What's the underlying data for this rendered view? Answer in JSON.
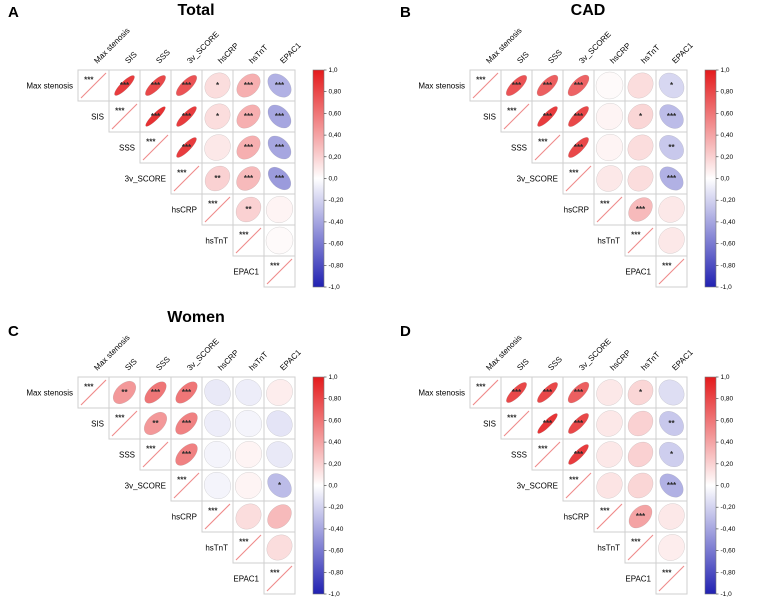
{
  "figure_name": "Correlation matrices",
  "palette": {
    "positive": "#e41a1c",
    "negative": "#2121b2",
    "zero": "#ffffff",
    "diagonal_line": "#ef8a8a",
    "grid": "#cfcfcf",
    "stars": "#2b2b2b",
    "colorbar_border": "#777777"
  },
  "colorbar": {
    "domain": [
      1,
      -1
    ],
    "ticks": [
      "1,0",
      "0,80",
      "0,60",
      "0,40",
      "0,20",
      "0,0",
      "-0,20",
      "-0,40",
      "-0,60",
      "-0,80",
      "-1,0"
    ]
  },
  "chart_data": [
    {
      "type": "heatmap",
      "subtype": "correlation-ellipse-matrix",
      "letter": "A",
      "title": "Total",
      "legend_position": "right",
      "variables": [
        "Max stenosis",
        "SIS",
        "SSS",
        "3v_SCORE",
        "hsCRP",
        "hsTnT",
        "EPAC1"
      ],
      "r": [
        [
          1,
          0.85,
          0.8,
          0.75,
          0.15,
          0.35,
          -0.35
        ],
        [
          null,
          1,
          0.9,
          0.85,
          0.15,
          0.35,
          -0.4
        ],
        [
          null,
          null,
          1,
          0.85,
          0.1,
          0.35,
          -0.4
        ],
        [
          null,
          null,
          null,
          1,
          0.2,
          0.3,
          -0.45
        ],
        [
          null,
          null,
          null,
          null,
          1,
          0.2,
          0.05
        ],
        [
          null,
          null,
          null,
          null,
          null,
          1,
          0.02
        ],
        [
          null,
          null,
          null,
          null,
          null,
          null,
          1
        ]
      ],
      "sig": [
        [
          "***",
          "***",
          "***",
          "***",
          "*",
          "***",
          "***"
        ],
        [
          null,
          "***",
          "***",
          "***",
          "*",
          "***",
          "***"
        ],
        [
          null,
          null,
          "***",
          "***",
          "",
          "***",
          "***"
        ],
        [
          null,
          null,
          null,
          "***",
          "**",
          "***",
          "***"
        ],
        [
          null,
          null,
          null,
          null,
          "***",
          "**",
          ""
        ],
        [
          null,
          null,
          null,
          null,
          null,
          "***",
          ""
        ],
        [
          null,
          null,
          null,
          null,
          null,
          null,
          "***"
        ]
      ]
    },
    {
      "type": "heatmap",
      "subtype": "correlation-ellipse-matrix",
      "letter": "B",
      "title": "CAD",
      "legend_position": "right",
      "variables": [
        "Max stenosis",
        "SIS",
        "SSS",
        "3v_SCORE",
        "hsCRP",
        "hsTnT",
        "EPAC1"
      ],
      "r": [
        [
          1,
          0.75,
          0.7,
          0.68,
          0.02,
          0.15,
          -0.18
        ],
        [
          null,
          1,
          0.85,
          0.8,
          0.05,
          0.18,
          -0.3
        ],
        [
          null,
          null,
          1,
          0.8,
          0.05,
          0.15,
          -0.25
        ],
        [
          null,
          null,
          null,
          1,
          0.1,
          0.15,
          -0.35
        ],
        [
          null,
          null,
          null,
          null,
          1,
          0.3,
          0.1
        ],
        [
          null,
          null,
          null,
          null,
          null,
          1,
          0.1
        ],
        [
          null,
          null,
          null,
          null,
          null,
          null,
          1
        ]
      ],
      "sig": [
        [
          "***",
          "***",
          "***",
          "***",
          "",
          "",
          "*"
        ],
        [
          null,
          "***",
          "***",
          "***",
          "",
          "*",
          "***"
        ],
        [
          null,
          null,
          "***",
          "***",
          "",
          "",
          "**"
        ],
        [
          null,
          null,
          null,
          "***",
          "",
          "",
          "***"
        ],
        [
          null,
          null,
          null,
          null,
          "***",
          "***",
          ""
        ],
        [
          null,
          null,
          null,
          null,
          null,
          "***",
          ""
        ],
        [
          null,
          null,
          null,
          null,
          null,
          null,
          "***"
        ]
      ]
    },
    {
      "type": "heatmap",
      "subtype": "correlation-ellipse-matrix",
      "letter": "C",
      "title": "Women",
      "legend_position": "right",
      "variables": [
        "Max stenosis",
        "SIS",
        "SSS",
        "3v_SCORE",
        "hsCRP",
        "hsTnT",
        "EPAC1"
      ],
      "r": [
        [
          1,
          0.45,
          0.6,
          0.6,
          -0.1,
          -0.08,
          0.08
        ],
        [
          null,
          1,
          0.45,
          0.55,
          -0.08,
          -0.05,
          -0.12
        ],
        [
          null,
          null,
          1,
          0.55,
          -0.05,
          0.05,
          -0.1
        ],
        [
          null,
          null,
          null,
          1,
          -0.05,
          0.05,
          -0.3
        ],
        [
          null,
          null,
          null,
          null,
          1,
          0.15,
          0.3
        ],
        [
          null,
          null,
          null,
          null,
          null,
          1,
          0.15
        ],
        [
          null,
          null,
          null,
          null,
          null,
          null,
          1
        ]
      ],
      "sig": [
        [
          "***",
          "**",
          "***",
          "***",
          "",
          "",
          ""
        ],
        [
          null,
          "***",
          "**",
          "***",
          "",
          "",
          ""
        ],
        [
          null,
          null,
          "***",
          "***",
          "",
          "",
          ""
        ],
        [
          null,
          null,
          null,
          "***",
          "",
          "",
          "*"
        ],
        [
          null,
          null,
          null,
          null,
          "***",
          "",
          ""
        ],
        [
          null,
          null,
          null,
          null,
          null,
          "***",
          ""
        ],
        [
          null,
          null,
          null,
          null,
          null,
          null,
          "***"
        ]
      ]
    },
    {
      "type": "heatmap",
      "subtype": "correlation-ellipse-matrix",
      "letter": "D",
      "title": "",
      "legend_position": "right",
      "variables": [
        "Max stenosis",
        "SIS",
        "SSS",
        "3v_SCORE",
        "hsCRP",
        "hsTnT",
        "EPAC1"
      ],
      "r": [
        [
          1,
          0.8,
          0.8,
          0.7,
          0.1,
          0.18,
          -0.15
        ],
        [
          null,
          1,
          0.88,
          0.8,
          0.1,
          0.2,
          -0.25
        ],
        [
          null,
          null,
          1,
          0.85,
          0.1,
          0.2,
          -0.22
        ],
        [
          null,
          null,
          null,
          1,
          0.12,
          0.18,
          -0.35
        ],
        [
          null,
          null,
          null,
          null,
          1,
          0.4,
          0.1
        ],
        [
          null,
          null,
          null,
          null,
          null,
          1,
          0.08
        ],
        [
          null,
          null,
          null,
          null,
          null,
          null,
          1
        ]
      ],
      "sig": [
        [
          "***",
          "***",
          "***",
          "***",
          "",
          "*",
          ""
        ],
        [
          null,
          "***",
          "***",
          "***",
          "",
          "",
          "**"
        ],
        [
          null,
          null,
          "***",
          "***",
          "",
          "",
          "*"
        ],
        [
          null,
          null,
          null,
          "***",
          "",
          "",
          "***"
        ],
        [
          null,
          null,
          null,
          null,
          "***",
          "***",
          ""
        ],
        [
          null,
          null,
          null,
          null,
          null,
          "***",
          ""
        ],
        [
          null,
          null,
          null,
          null,
          null,
          null,
          "***"
        ]
      ]
    }
  ]
}
